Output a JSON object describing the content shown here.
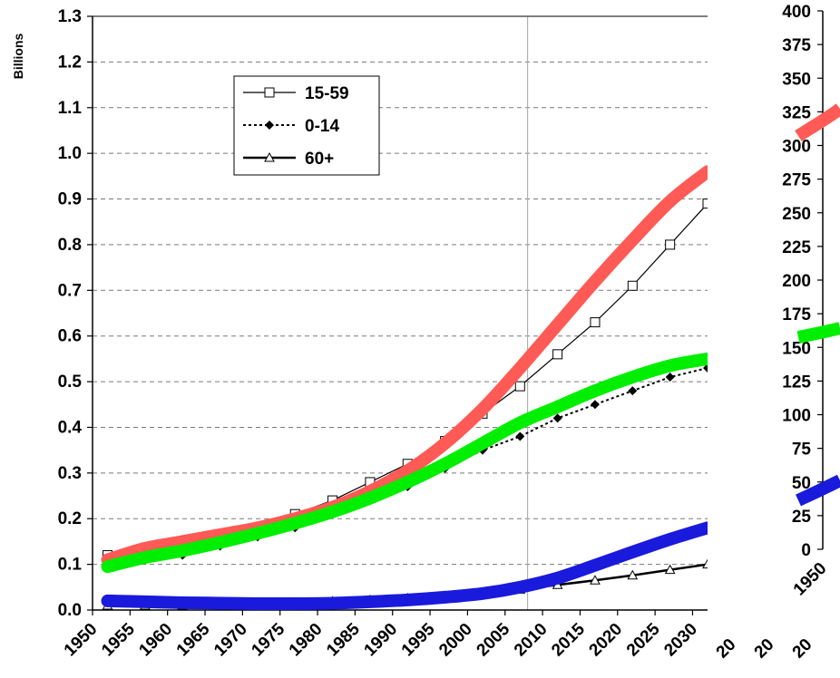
{
  "chart_data": [
    {
      "type": "line",
      "title": "",
      "xlabel": "",
      "ylabel": "Billions",
      "ylim": [
        0,
        1.3
      ],
      "xlim": [
        1950,
        2032
      ],
      "grid": true,
      "legend_position": "top-left",
      "yticks": [
        "0.0",
        "0.1",
        "0.2",
        "0.3",
        "0.4",
        "0.5",
        "0.6",
        "0.7",
        "0.8",
        "0.9",
        "1.0",
        "1.1",
        "1.2",
        "1.3"
      ],
      "xticks": [
        "1950",
        "1955",
        "1960",
        "1965",
        "1970",
        "1975",
        "1980",
        "1985",
        "1990",
        "1995",
        "2000",
        "2005",
        "2010",
        "2015",
        "2020",
        "2025",
        "2030"
      ],
      "annotations": [
        "vertical reference line at 2008"
      ],
      "series": [
        {
          "name": "15-59",
          "marker": "open-square",
          "color": "#000000",
          "x": [
            1952,
            1957,
            1962,
            1967,
            1972,
            1977,
            1982,
            1987,
            1992,
            1997,
            2002,
            2007,
            2012,
            2017,
            2022,
            2027,
            2032
          ],
          "values": [
            0.12,
            0.13,
            0.14,
            0.16,
            0.18,
            0.21,
            0.24,
            0.28,
            0.32,
            0.37,
            0.43,
            0.49,
            0.56,
            0.63,
            0.71,
            0.8,
            0.89
          ]
        },
        {
          "name": "0-14",
          "marker": "filled-diamond",
          "color": "#000000",
          "x": [
            1952,
            1957,
            1962,
            1967,
            1972,
            1977,
            1982,
            1987,
            1992,
            1997,
            2002,
            2007,
            2012,
            2017,
            2022,
            2027,
            2032
          ],
          "values": [
            0.1,
            0.11,
            0.12,
            0.14,
            0.16,
            0.18,
            0.21,
            0.24,
            0.27,
            0.31,
            0.35,
            0.38,
            0.42,
            0.45,
            0.48,
            0.51,
            0.53
          ]
        },
        {
          "name": "60+",
          "marker": "open-triangle",
          "color": "#000000",
          "x": [
            1952,
            1957,
            1962,
            1967,
            1972,
            1977,
            1982,
            1987,
            1992,
            1997,
            2002,
            2007,
            2012,
            2017,
            2022,
            2027,
            2032
          ],
          "values": [
            0.01,
            0.01,
            0.01,
            0.012,
            0.014,
            0.016,
            0.019,
            0.022,
            0.026,
            0.031,
            0.037,
            0.045,
            0.055,
            0.065,
            0.076,
            0.088,
            0.1
          ]
        }
      ],
      "overlay_curves": [
        {
          "color": "#ff5a55",
          "x": [
            1952,
            1957,
            1962,
            1967,
            1972,
            1977,
            1982,
            1987,
            1992,
            1997,
            2002,
            2007,
            2012,
            2017,
            2022,
            2027,
            2032
          ],
          "values": [
            0.11,
            0.135,
            0.15,
            0.165,
            0.18,
            0.2,
            0.225,
            0.26,
            0.305,
            0.365,
            0.44,
            0.53,
            0.625,
            0.72,
            0.81,
            0.895,
            0.96
          ]
        },
        {
          "color": "#00ee00",
          "x": [
            1952,
            1957,
            1962,
            1967,
            1972,
            1977,
            1982,
            1987,
            1992,
            1997,
            2002,
            2007,
            2012,
            2017,
            2022,
            2027,
            2032
          ],
          "values": [
            0.095,
            0.115,
            0.13,
            0.148,
            0.168,
            0.19,
            0.215,
            0.245,
            0.28,
            0.32,
            0.365,
            0.41,
            0.445,
            0.48,
            0.51,
            0.535,
            0.55
          ]
        },
        {
          "color": "#1a1adc",
          "x": [
            1952,
            1957,
            1962,
            1967,
            1972,
            1977,
            1982,
            1987,
            1992,
            1997,
            2002,
            2007,
            2012,
            2017,
            2022,
            2027,
            2032
          ],
          "values": [
            0.02,
            0.018,
            0.016,
            0.015,
            0.014,
            0.014,
            0.015,
            0.018,
            0.022,
            0.028,
            0.036,
            0.05,
            0.07,
            0.098,
            0.127,
            0.155,
            0.18
          ]
        }
      ]
    },
    {
      "type": "line",
      "title": "",
      "ylim": [
        0,
        400
      ],
      "yticks": [
        "0",
        "25",
        "50",
        "75",
        "100",
        "125",
        "150",
        "175",
        "200",
        "225",
        "250",
        "275",
        "300",
        "325",
        "350",
        "375",
        "400"
      ],
      "xticks": [
        "1950"
      ],
      "note": "partially visible second chart on right edge"
    }
  ]
}
